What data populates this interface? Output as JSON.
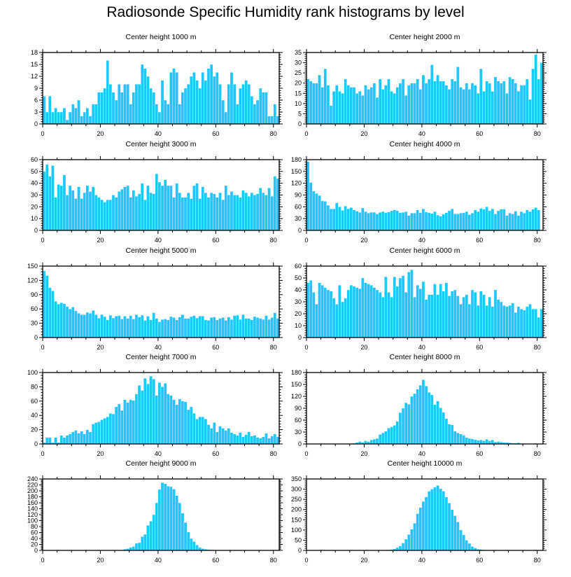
{
  "title": "Radiosonde Specific Humidity rank histograms by level",
  "colors": {
    "bar": "#1ec8ff",
    "axis": "#000000",
    "background": "#ffffff"
  },
  "chart_data": [
    {
      "type": "bar",
      "title": "Center height 1000 m",
      "xlim": [
        0,
        82
      ],
      "ylim": [
        0,
        18
      ],
      "xticks": [
        0,
        20,
        40,
        60,
        80
      ],
      "yticks": [
        0,
        3,
        6,
        9,
        12,
        15,
        18
      ],
      "x_start": 0,
      "values": [
        7,
        3,
        7,
        3,
        4,
        3,
        3,
        4,
        1,
        3,
        5,
        4,
        6,
        2,
        3,
        4,
        2,
        5,
        5,
        8,
        8,
        9,
        16,
        10,
        8,
        6,
        10,
        8,
        10,
        10,
        5,
        8,
        10,
        10,
        15,
        14,
        12,
        9,
        8,
        5,
        3,
        11,
        6,
        5,
        13,
        14,
        13,
        5,
        8,
        9,
        10,
        12,
        13,
        11,
        9,
        13,
        11,
        14,
        15,
        12,
        13,
        10,
        6,
        3,
        10,
        13,
        10,
        5,
        9,
        10,
        11,
        10,
        7,
        5,
        6,
        9,
        8,
        8,
        2,
        2,
        5,
        2
      ]
    },
    {
      "type": "bar",
      "title": "Center height 2000 m",
      "xlim": [
        0,
        82
      ],
      "ylim": [
        0,
        35
      ],
      "xticks": [
        0,
        20,
        40,
        60,
        80
      ],
      "yticks": [
        0,
        5,
        10,
        15,
        20,
        25,
        30,
        35
      ],
      "x_start": 0,
      "values": [
        22,
        21,
        20,
        20,
        24,
        18,
        27,
        19,
        9,
        16,
        19,
        16,
        15,
        22,
        19,
        18,
        18,
        15,
        16,
        14,
        19,
        17,
        18,
        20,
        13,
        22,
        17,
        19,
        22,
        16,
        15,
        18,
        20,
        22,
        14,
        19,
        20,
        20,
        22,
        17,
        24,
        20,
        22,
        29,
        21,
        24,
        21,
        21,
        19,
        17,
        22,
        21,
        28,
        18,
        17,
        20,
        17,
        20,
        19,
        15,
        27,
        16,
        21,
        20,
        16,
        23,
        21,
        20,
        21,
        15,
        23,
        22,
        20,
        16,
        19,
        19,
        22,
        12,
        27,
        34,
        22,
        30
      ]
    },
    {
      "type": "bar",
      "title": "Center height 3000 m",
      "xlim": [
        0,
        82
      ],
      "ylim": [
        0,
        60
      ],
      "xticks": [
        0,
        20,
        40,
        60,
        80
      ],
      "yticks": [
        0,
        10,
        20,
        30,
        40,
        50,
        60
      ],
      "x_start": 0,
      "values": [
        50,
        56,
        46,
        55,
        28,
        39,
        38,
        47,
        30,
        38,
        34,
        27,
        37,
        27,
        32,
        38,
        33,
        37,
        30,
        28,
        26,
        24,
        26,
        26,
        30,
        28,
        33,
        35,
        37,
        38,
        28,
        34,
        29,
        31,
        40,
        26,
        38,
        32,
        31,
        48,
        41,
        38,
        43,
        38,
        38,
        28,
        40,
        32,
        28,
        28,
        32,
        27,
        38,
        40,
        27,
        37,
        32,
        28,
        32,
        31,
        28,
        32,
        26,
        38,
        30,
        33,
        30,
        30,
        28,
        34,
        32,
        29,
        32,
        30,
        31,
        36,
        32,
        30,
        36,
        29,
        46,
        44
      ]
    },
    {
      "type": "bar",
      "title": "Center height 4000 m",
      "xlim": [
        0,
        82
      ],
      "ylim": [
        0,
        180
      ],
      "xticks": [
        0,
        20,
        40,
        60,
        80
      ],
      "yticks": [
        0,
        30,
        60,
        90,
        120,
        150,
        180
      ],
      "x_start": 0,
      "values": [
        175,
        122,
        100,
        94,
        89,
        75,
        74,
        64,
        55,
        55,
        70,
        60,
        51,
        62,
        55,
        58,
        52,
        49,
        46,
        57,
        48,
        44,
        46,
        46,
        42,
        46,
        48,
        45,
        47,
        50,
        52,
        50,
        45,
        46,
        48,
        38,
        44,
        44,
        52,
        45,
        55,
        47,
        45,
        43,
        48,
        39,
        36,
        41,
        45,
        50,
        55,
        42,
        42,
        44,
        45,
        48,
        40,
        44,
        52,
        48,
        56,
        54,
        60,
        50,
        55,
        42,
        50,
        54,
        54,
        38,
        44,
        42,
        49,
        38,
        48,
        44,
        52,
        48,
        54,
        58,
        52
      ]
    },
    {
      "type": "bar",
      "title": "Center height 5000 m",
      "xlim": [
        0,
        82
      ],
      "ylim": [
        0,
        150
      ],
      "xticks": [
        0,
        20,
        40,
        60,
        80
      ],
      "yticks": [
        0,
        30,
        60,
        90,
        120,
        150
      ],
      "x_start": 0,
      "values": [
        140,
        130,
        105,
        98,
        76,
        70,
        73,
        71,
        65,
        60,
        64,
        56,
        51,
        48,
        48,
        53,
        51,
        57,
        48,
        41,
        48,
        44,
        37,
        47,
        41,
        45,
        46,
        39,
        45,
        40,
        46,
        39,
        48,
        43,
        47,
        36,
        45,
        37,
        52,
        40,
        33,
        38,
        39,
        37,
        44,
        42,
        37,
        43,
        48,
        40,
        40,
        44,
        46,
        41,
        45,
        45,
        37,
        36,
        42,
        43,
        37,
        40,
        42,
        36,
        43,
        38,
        46,
        47,
        38,
        48,
        40,
        40,
        37,
        44,
        42,
        40,
        38,
        46,
        38,
        42,
        52,
        40
      ]
    },
    {
      "type": "bar",
      "title": "Center height 6000 m",
      "xlim": [
        0,
        82
      ],
      "ylim": [
        0,
        60
      ],
      "xticks": [
        0,
        20,
        40,
        60,
        80
      ],
      "yticks": [
        0,
        10,
        20,
        30,
        40,
        50,
        60
      ],
      "x_start": 0,
      "values": [
        46,
        48,
        38,
        28,
        46,
        44,
        42,
        40,
        39,
        33,
        28,
        44,
        30,
        33,
        40,
        44,
        43,
        42,
        41,
        50,
        46,
        45,
        44,
        42,
        40,
        38,
        34,
        51,
        38,
        34,
        51,
        43,
        50,
        52,
        38,
        55,
        57,
        34,
        44,
        41,
        47,
        32,
        36,
        36,
        45,
        36,
        45,
        39,
        46,
        35,
        39,
        40,
        35,
        28,
        34,
        36,
        28,
        40,
        38,
        27,
        39,
        36,
        27,
        34,
        26,
        40,
        32,
        30,
        27,
        26,
        27,
        29,
        21,
        26,
        24,
        23,
        26,
        28,
        24,
        24,
        17,
        24
      ]
    },
    {
      "type": "bar",
      "title": "Center height 7000 m",
      "xlim": [
        0,
        82
      ],
      "ylim": [
        0,
        100
      ],
      "xticks": [
        0,
        20,
        40,
        60,
        80
      ],
      "yticks": [
        0,
        20,
        40,
        60,
        80,
        100
      ],
      "x_start": 0,
      "values": [
        2,
        9,
        9,
        2,
        9,
        2,
        12,
        9,
        12,
        14,
        17,
        19,
        15,
        18,
        14,
        20,
        17,
        28,
        30,
        31,
        34,
        36,
        38,
        43,
        42,
        52,
        56,
        47,
        62,
        58,
        62,
        61,
        70,
        82,
        75,
        92,
        84,
        95,
        91,
        68,
        86,
        80,
        85,
        70,
        68,
        62,
        55,
        63,
        60,
        59,
        48,
        52,
        43,
        35,
        38,
        38,
        35,
        27,
        22,
        30,
        17,
        25,
        22,
        19,
        22,
        16,
        14,
        12,
        16,
        10,
        13,
        17,
        11,
        12,
        9,
        8,
        10,
        15,
        8,
        11,
        14,
        10
      ]
    },
    {
      "type": "bar",
      "title": "Center height 8000 m",
      "xlim": [
        0,
        82
      ],
      "ylim": [
        0,
        180
      ],
      "xticks": [
        0,
        20,
        40,
        60,
        80
      ],
      "yticks": [
        0,
        30,
        60,
        90,
        120,
        150,
        180
      ],
      "x_start": 0,
      "values": [
        0,
        0,
        0,
        0,
        0,
        0,
        0,
        0,
        0,
        0,
        0,
        0,
        0,
        0,
        1,
        0,
        2,
        4,
        6,
        4,
        8,
        6,
        10,
        12,
        14,
        24,
        28,
        32,
        40,
        43,
        47,
        57,
        79,
        90,
        104,
        100,
        120,
        127,
        138,
        148,
        162,
        146,
        130,
        124,
        99,
        108,
        91,
        80,
        64,
        50,
        48,
        32,
        28,
        25,
        22,
        16,
        14,
        13,
        11,
        9,
        10,
        8,
        12,
        8,
        10,
        5,
        6,
        5,
        4,
        4,
        3,
        2,
        2,
        3,
        1,
        1,
        0,
        1,
        0,
        1,
        0,
        1
      ]
    },
    {
      "type": "bar",
      "title": "Center height 9000 m",
      "xlim": [
        0,
        82
      ],
      "ylim": [
        0,
        240
      ],
      "xticks": [
        0,
        20,
        40,
        60,
        80
      ],
      "yticks": [
        0,
        20,
        40,
        60,
        80,
        100,
        120,
        140,
        160,
        180,
        200,
        220,
        240
      ],
      "x_start": 0,
      "values": [
        0,
        0,
        0,
        0,
        0,
        0,
        0,
        0,
        0,
        0,
        0,
        0,
        0,
        0,
        0,
        0,
        0,
        0,
        0,
        0,
        0,
        0,
        0,
        0,
        0,
        0,
        1,
        2,
        4,
        6,
        10,
        13,
        24,
        26,
        46,
        54,
        84,
        98,
        120,
        160,
        205,
        228,
        224,
        216,
        214,
        206,
        184,
        160,
        125,
        94,
        62,
        40,
        30,
        18,
        10,
        6,
        4,
        3,
        2,
        1,
        1,
        0,
        0,
        1,
        0,
        0,
        0,
        2,
        0,
        1,
        0,
        0,
        0,
        0,
        0,
        0,
        0,
        0,
        1,
        0,
        0,
        1
      ]
    },
    {
      "type": "bar",
      "title": "Center height 10000 m",
      "xlim": [
        0,
        82
      ],
      "ylim": [
        0,
        350
      ],
      "xticks": [
        0,
        20,
        40,
        60,
        80
      ],
      "yticks": [
        0,
        50,
        100,
        150,
        200,
        250,
        300,
        350
      ],
      "x_start": 0,
      "values": [
        0,
        0,
        0,
        0,
        0,
        0,
        0,
        0,
        0,
        0,
        0,
        0,
        0,
        0,
        0,
        0,
        0,
        0,
        0,
        0,
        0,
        0,
        0,
        0,
        0,
        0,
        0,
        1,
        2,
        4,
        8,
        14,
        22,
        36,
        55,
        78,
        104,
        133,
        180,
        210,
        240,
        262,
        290,
        300,
        310,
        318,
        302,
        290,
        262,
        232,
        200,
        170,
        140,
        100,
        76,
        50,
        34,
        19,
        12,
        6,
        4,
        3,
        2,
        1,
        1,
        0,
        0,
        0,
        0,
        0,
        0,
        0,
        0,
        0,
        0,
        0,
        0,
        0,
        0,
        0,
        1,
        2
      ]
    }
  ]
}
